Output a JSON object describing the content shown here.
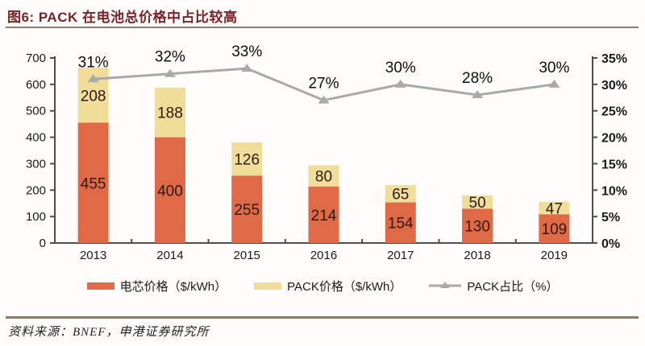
{
  "header": {
    "title": "图6:  PACK 在电池总价格中占比较高"
  },
  "chart_data": {
    "type": "bar",
    "subtype": "stacked-bar-with-line",
    "title": "图6: PACK 在电池总价格中占比较高",
    "categories": [
      "2013",
      "2014",
      "2015",
      "2016",
      "2017",
      "2018",
      "2019"
    ],
    "series": [
      {
        "name": "电芯价格（$/kWh）",
        "type": "bar",
        "stacked": true,
        "color": "#e06a48",
        "values": [
          455,
          400,
          255,
          214,
          154,
          130,
          109
        ]
      },
      {
        "name": "PACK价格（$/kWh）",
        "type": "bar",
        "stacked": true,
        "color": "#f0dd9a",
        "values": [
          208,
          188,
          126,
          80,
          65,
          50,
          47
        ]
      },
      {
        "name": "PACK占比（%）",
        "type": "line",
        "axis": "right",
        "color": "#a9a9a9",
        "values": [
          31,
          32,
          33,
          27,
          30,
          28,
          30
        ],
        "point_labels": [
          "31%",
          "32%",
          "33%",
          "27%",
          "30%",
          "28%",
          "30%"
        ]
      }
    ],
    "left_axis": {
      "min": 0,
      "max": 700,
      "step": 100,
      "ticks": [
        "0",
        "100",
        "200",
        "300",
        "400",
        "500",
        "600",
        "700"
      ]
    },
    "right_axis": {
      "min": 0,
      "max": 35,
      "step": 5,
      "ticks": [
        "0%",
        "5%",
        "10%",
        "15%",
        "20%",
        "25%",
        "30%",
        "35%"
      ]
    },
    "grid": false,
    "legend_position": "bottom",
    "bar_label_color": "#2e1a0e",
    "pct_label_color": "#0d0d0d",
    "axis_color": "#4d4d4d",
    "tick_label_color": "#1a1a1a"
  },
  "footer": {
    "source": "资料来源：BNEF，申港证券研究所"
  }
}
